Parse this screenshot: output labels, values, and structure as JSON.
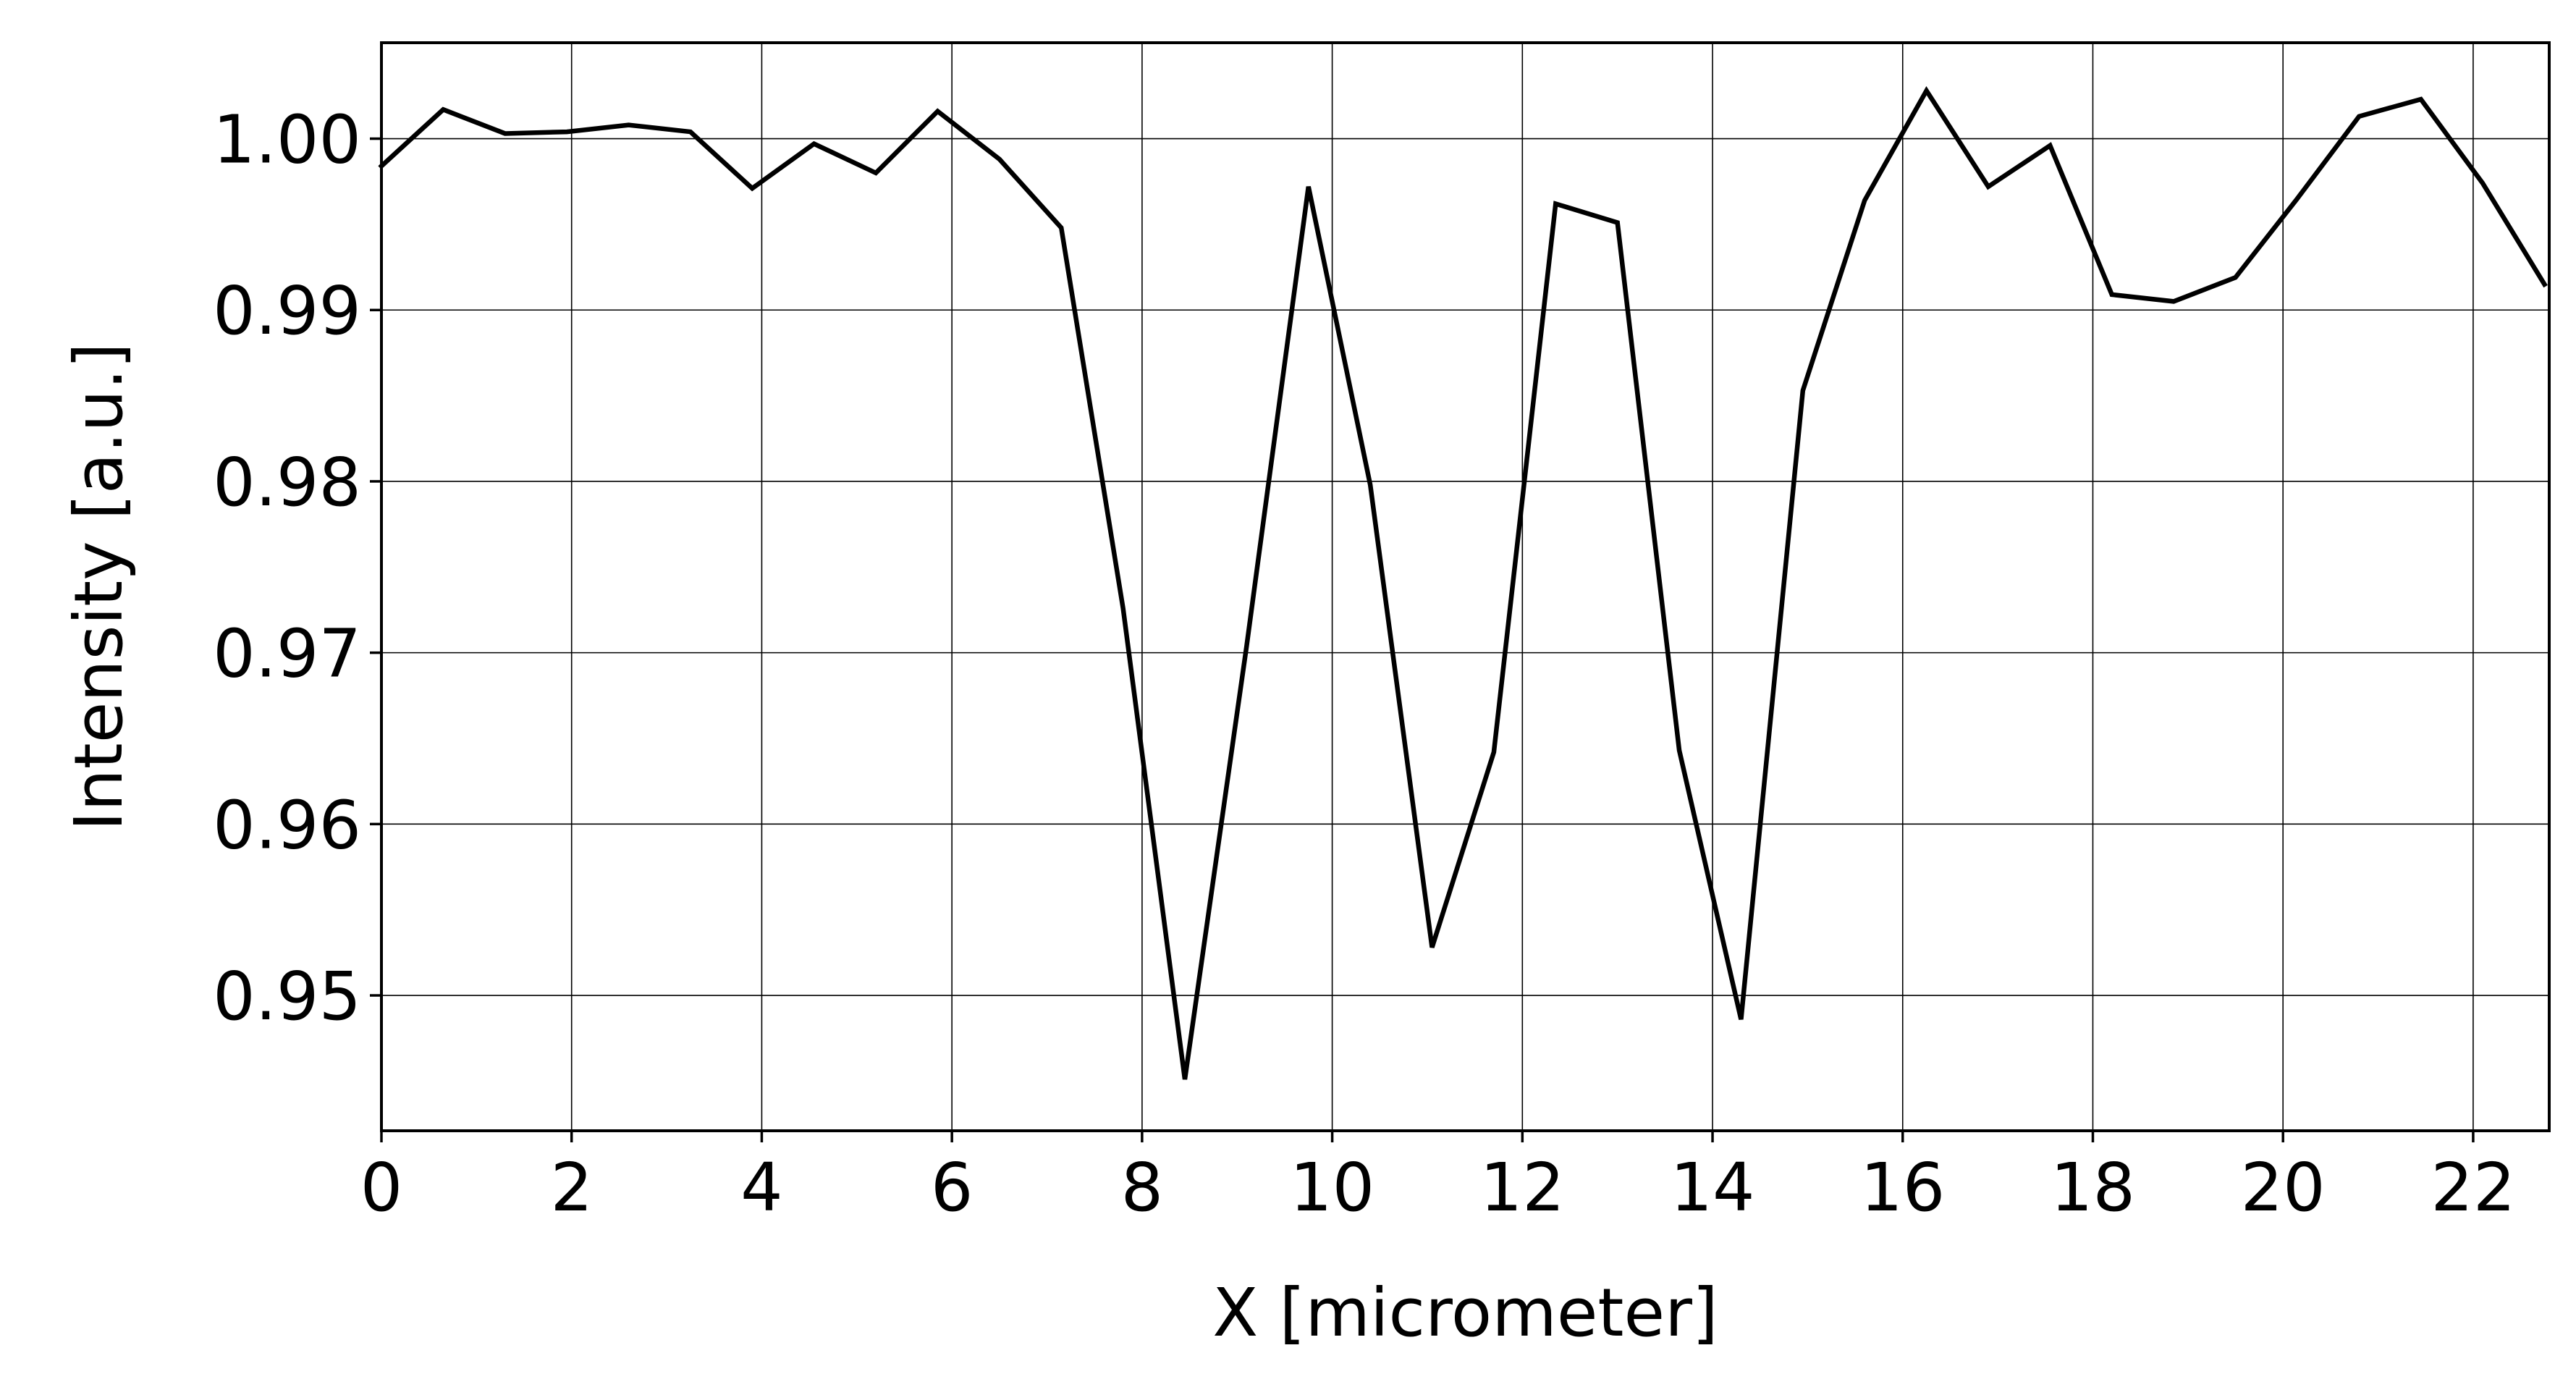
{
  "chart_data": {
    "type": "line",
    "title": "",
    "xlabel": "X [micrometer]",
    "ylabel": "Intensity [a.u.]",
    "xlim": [
      0,
      22.8
    ],
    "ylim": [
      0.9421,
      1.0056
    ],
    "grid": true,
    "legend": "none",
    "line_color": "#000000",
    "xticks": [
      0,
      2,
      4,
      6,
      8,
      10,
      12,
      14,
      16,
      18,
      20,
      22
    ],
    "xtick_labels": [
      "0",
      "2",
      "4",
      "6",
      "8",
      "10",
      "12",
      "14",
      "16",
      "18",
      "20",
      "22"
    ],
    "yticks": [
      0.95,
      0.96,
      0.97,
      0.98,
      0.99,
      1.0
    ],
    "ytick_labels": [
      "0.95",
      "0.96",
      "0.97",
      "0.98",
      "0.99",
      "1.00"
    ],
    "series": [
      {
        "x": [
          0,
          0.65,
          1.3,
          1.95,
          2.6,
          3.25,
          3.9,
          4.55,
          5.2,
          5.85,
          6.5,
          7.15,
          7.8,
          8.45,
          9.1,
          9.75,
          10.4,
          11.05,
          11.7,
          12.35,
          13.0,
          13.65,
          14.3,
          14.95,
          15.6,
          16.25,
          16.9,
          17.55,
          18.2,
          18.85,
          19.5,
          20.15,
          20.8,
          21.45,
          22.1,
          22.75
        ],
        "y": [
          0.9984,
          1.0017,
          1.0003,
          1.0004,
          1.0008,
          1.0004,
          0.9971,
          0.9997,
          0.998,
          1.0016,
          0.9988,
          0.9948,
          0.9726,
          0.9451,
          0.9704,
          0.9972,
          0.9798,
          0.9528,
          0.9642,
          0.9962,
          0.9951,
          0.9643,
          0.9486,
          0.9853,
          0.9964,
          1.0028,
          0.9972,
          0.9996,
          0.9909,
          0.9905,
          0.9919,
          0.9965,
          1.0013,
          1.0023,
          0.9974,
          0.9915
        ]
      }
    ]
  }
}
